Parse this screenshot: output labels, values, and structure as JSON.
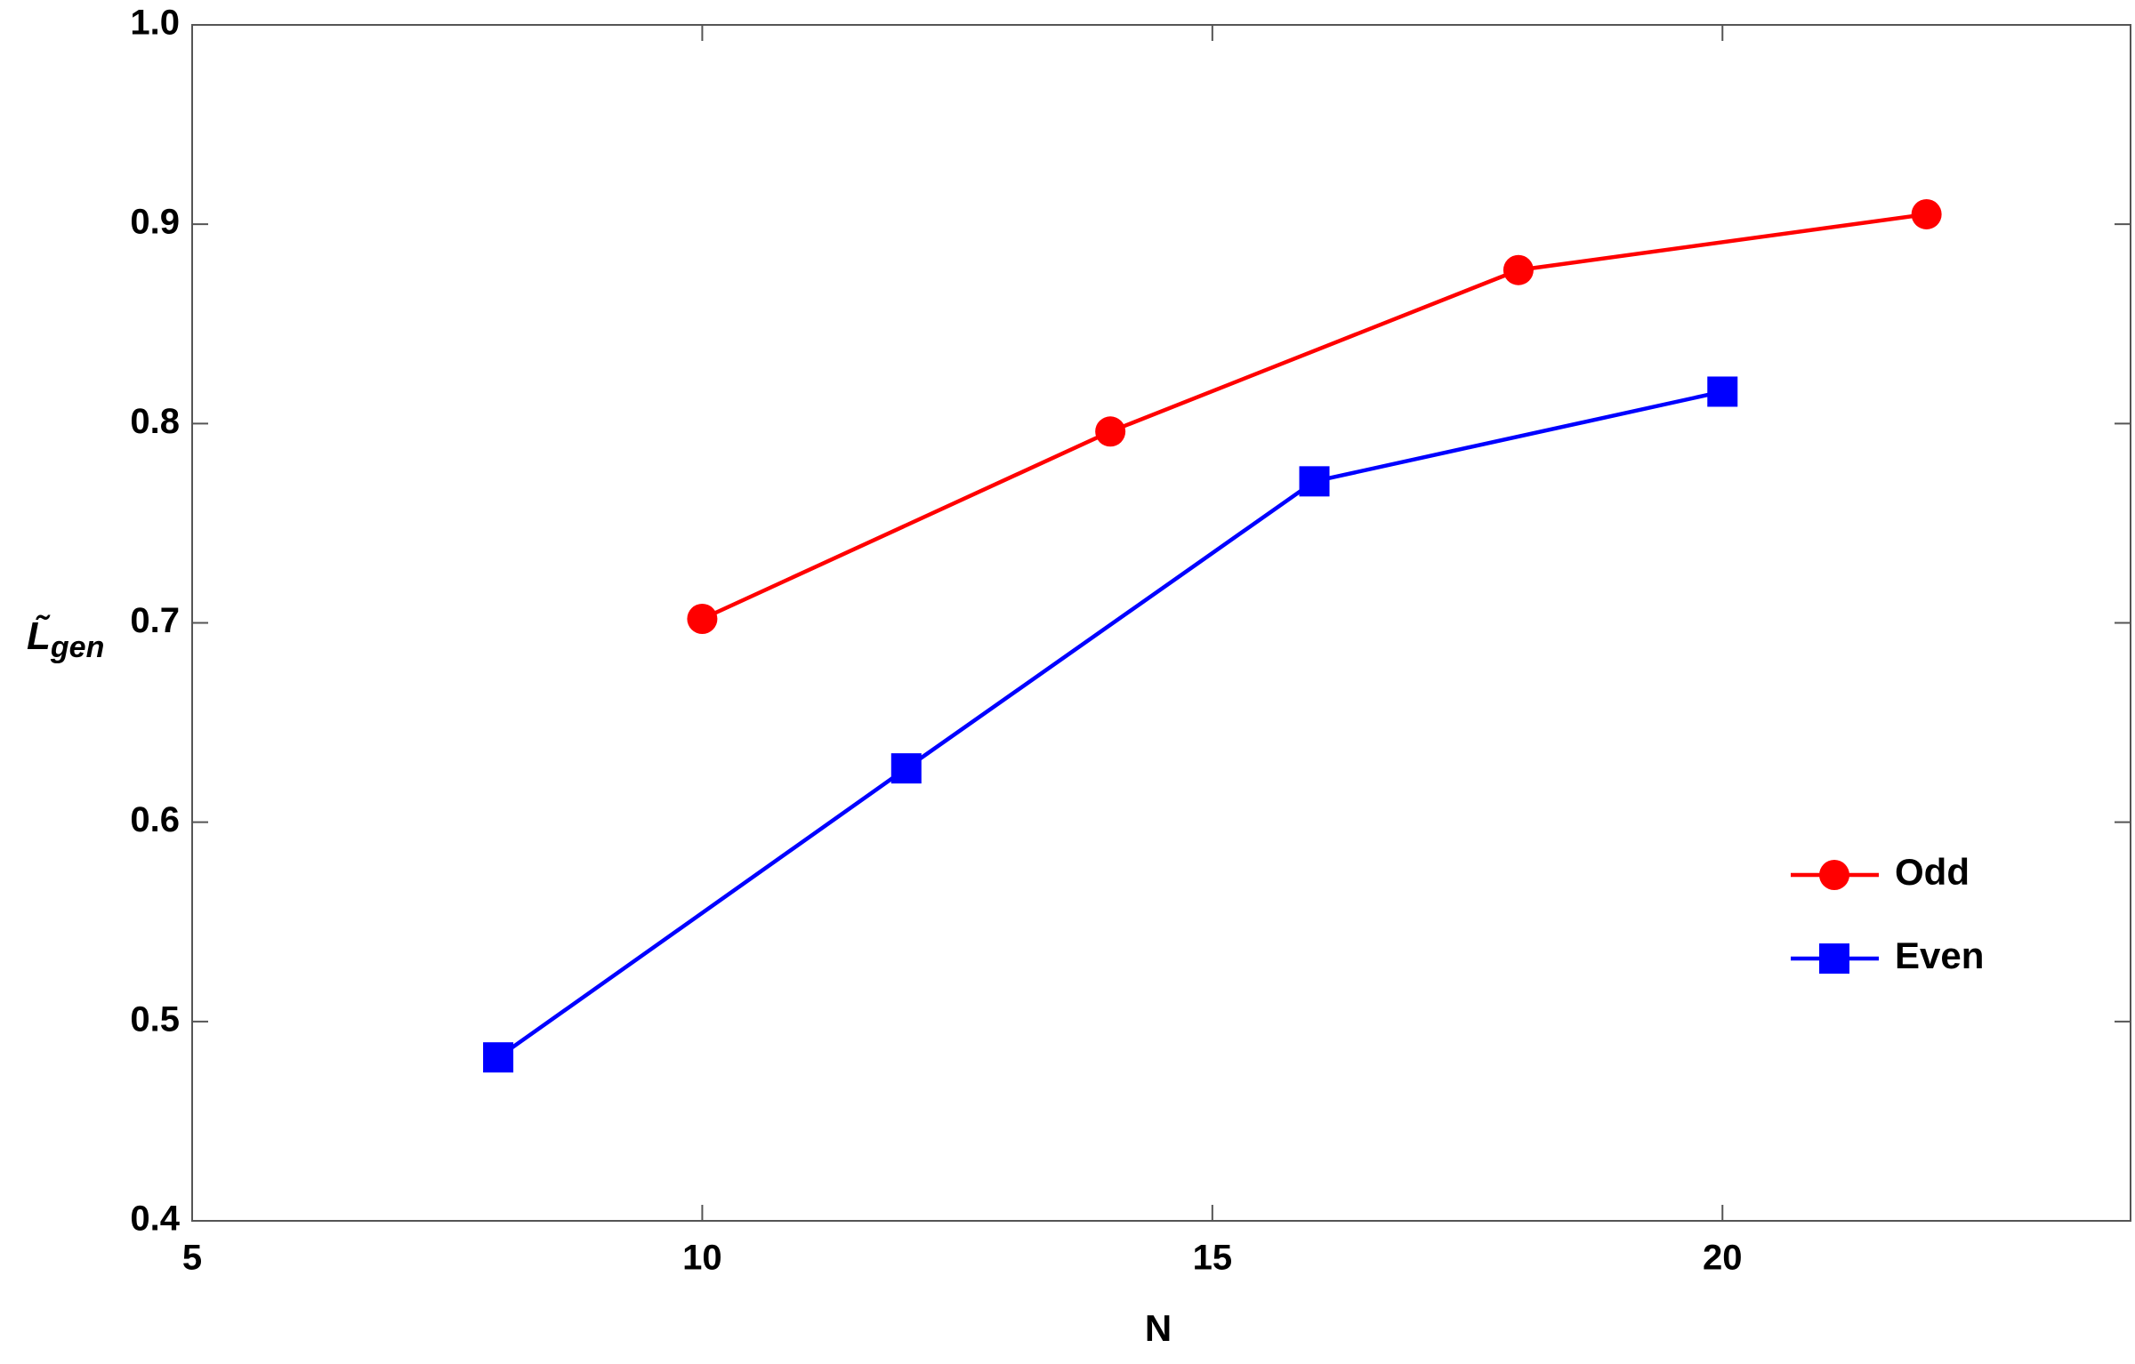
{
  "chart_data": {
    "type": "line",
    "x_label": "N",
    "y_label": {
      "text": "L̃",
      "subscript": "gen"
    },
    "xlim": [
      5,
      24
    ],
    "ylim": [
      0.4,
      1.0
    ],
    "xticks": [
      5,
      10,
      15,
      20
    ],
    "yticks": [
      0.4,
      0.5,
      0.6,
      0.7,
      0.8,
      0.9,
      {
        "value": 1.0,
        "label": "1.0"
      }
    ],
    "legend": "lower right",
    "series": [
      {
        "name": "Odd",
        "color": "#ff0000",
        "marker": "circle",
        "x": [
          10,
          14,
          18,
          22
        ],
        "values": [
          0.702,
          0.796,
          0.877,
          0.905
        ]
      },
      {
        "name": "Even",
        "color": "#0000ff",
        "marker": "square",
        "x": [
          8,
          12,
          16,
          20
        ],
        "values": [
          0.482,
          0.627,
          0.771,
          0.816
        ]
      }
    ]
  }
}
